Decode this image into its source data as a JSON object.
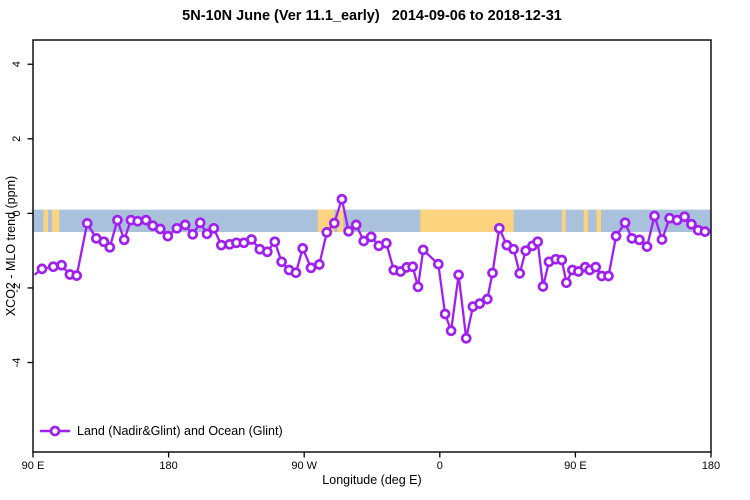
{
  "chart_data": {
    "type": "line",
    "title": "5N-10N June (Ver 11.1_early)   2014-09-06 to 2018-12-31",
    "xlabel": "Longitude (deg E)",
    "ylabel": "XCO2 - MLO trend (ppm)",
    "xlim": [
      90,
      540
    ],
    "ylim": [
      -6.4,
      4.65
    ],
    "grid": false,
    "x_ticks": [
      {
        "x": 90,
        "label": "90 E"
      },
      {
        "x": 180,
        "label": "180"
      },
      {
        "x": 270,
        "label": "90 W"
      },
      {
        "x": 360,
        "label": "0"
      },
      {
        "x": 450,
        "label": "90 E"
      },
      {
        "x": 540,
        "label": "180"
      }
    ],
    "y_ticks": [
      {
        "y": 4,
        "label": "4"
      },
      {
        "y": 2,
        "label": "2"
      },
      {
        "y": 0,
        "label": "0"
      },
      {
        "y": -2,
        "label": "-2"
      },
      {
        "y": -4,
        "label": "-4"
      }
    ],
    "map_strip": {
      "comment": "land/ocean strip centered near 0 ppm",
      "v_top": 0.1,
      "v_bottom": -0.5,
      "ocean_color": "#aac1dc",
      "land_color": "#fcd37e",
      "land_segments": [
        [
          97,
          100
        ],
        [
          102.5,
          107.5
        ],
        [
          279,
          290
        ],
        [
          292,
          296
        ],
        [
          347,
          409
        ],
        [
          441,
          443.5
        ],
        [
          455.5,
          458.5
        ],
        [
          464,
          467
        ]
      ]
    },
    "legend": {
      "position": "bottom-left",
      "entries": [
        {
          "label": "Land (Nadir&Glint) and Ocean (Glint)",
          "color": "#A020F0",
          "marker": "open-circle"
        }
      ]
    },
    "series": [
      {
        "name": "Land (Nadir&Glint) and Ocean (Glint)",
        "color": "#A020F0",
        "marker_fill": "#ffffff",
        "lead_in_point": [
          91.5,
          -1.63
        ],
        "points": [
          [
            96,
            -1.49
          ],
          [
            103.5,
            -1.43
          ],
          [
            109,
            -1.39
          ],
          [
            114.5,
            -1.64
          ],
          [
            119,
            -1.67
          ],
          [
            126,
            -0.27
          ],
          [
            132,
            -0.67
          ],
          [
            137,
            -0.76
          ],
          [
            141,
            -0.91
          ],
          [
            146,
            -0.18
          ],
          [
            150.5,
            -0.71
          ],
          [
            155,
            -0.18
          ],
          [
            159.5,
            -0.21
          ],
          [
            165,
            -0.18
          ],
          [
            169.5,
            -0.33
          ],
          [
            174.5,
            -0.42
          ],
          [
            179.5,
            -0.61
          ],
          [
            185.5,
            -0.4
          ],
          [
            191,
            -0.31
          ],
          [
            196,
            -0.56
          ],
          [
            201,
            -0.25
          ],
          [
            205.5,
            -0.55
          ],
          [
            210,
            -0.4
          ],
          [
            215,
            -0.85
          ],
          [
            220.5,
            -0.83
          ],
          [
            225,
            -0.79
          ],
          [
            230,
            -0.79
          ],
          [
            235,
            -0.7
          ],
          [
            240.5,
            -0.96
          ],
          [
            245.5,
            -1.03
          ],
          [
            250.5,
            -0.76
          ],
          [
            255,
            -1.3
          ],
          [
            260,
            -1.52
          ],
          [
            264.5,
            -1.59
          ],
          [
            269,
            -0.94
          ],
          [
            274.5,
            -1.46
          ],
          [
            280,
            -1.37
          ],
          [
            285,
            -0.51
          ],
          [
            290,
            -0.26
          ],
          [
            295,
            0.38
          ],
          [
            299.5,
            -0.48
          ],
          [
            304.5,
            -0.31
          ],
          [
            309.5,
            -0.74
          ],
          [
            314.5,
            -0.63
          ],
          [
            319.5,
            -0.87
          ],
          [
            324.5,
            -0.8
          ],
          [
            329.5,
            -1.52
          ],
          [
            334,
            -1.56
          ],
          [
            338,
            -1.45
          ],
          [
            342,
            -1.43
          ],
          [
            345.5,
            -1.97
          ],
          [
            349,
            -0.98
          ],
          [
            359,
            -1.36
          ],
          [
            363.5,
            -2.7
          ],
          [
            367.5,
            -3.15
          ],
          [
            372.5,
            -1.65
          ],
          [
            377.5,
            -3.35
          ],
          [
            382,
            -2.5
          ],
          [
            386.5,
            -2.42
          ],
          [
            391.5,
            -2.3
          ],
          [
            395,
            -1.6
          ],
          [
            399.5,
            -0.4
          ],
          [
            404.5,
            -0.85
          ],
          [
            409,
            -0.96
          ],
          [
            413,
            -1.61
          ],
          [
            417,
            -1.0
          ],
          [
            421.5,
            -0.87
          ],
          [
            425,
            -0.76
          ],
          [
            428.5,
            -1.96
          ],
          [
            432.5,
            -1.3
          ],
          [
            437,
            -1.23
          ],
          [
            441,
            -1.25
          ],
          [
            444,
            -1.86
          ],
          [
            448,
            -1.52
          ],
          [
            452,
            -1.56
          ],
          [
            456.5,
            -1.44
          ],
          [
            459.5,
            -1.52
          ],
          [
            463.5,
            -1.44
          ],
          [
            467.5,
            -1.68
          ],
          [
            472,
            -1.68
          ],
          [
            477,
            -0.61
          ],
          [
            483,
            -0.25
          ],
          [
            487.5,
            -0.67
          ],
          [
            492.5,
            -0.71
          ],
          [
            497.5,
            -0.89
          ],
          [
            502.5,
            -0.07
          ],
          [
            507.5,
            -0.7
          ],
          [
            512.5,
            -0.13
          ],
          [
            517.5,
            -0.18
          ],
          [
            522.5,
            -0.09
          ],
          [
            527,
            -0.29
          ],
          [
            531.5,
            -0.45
          ],
          [
            536,
            -0.49
          ]
        ]
      }
    ],
    "frame_color": "#000000",
    "background_color": "#ffffff"
  }
}
